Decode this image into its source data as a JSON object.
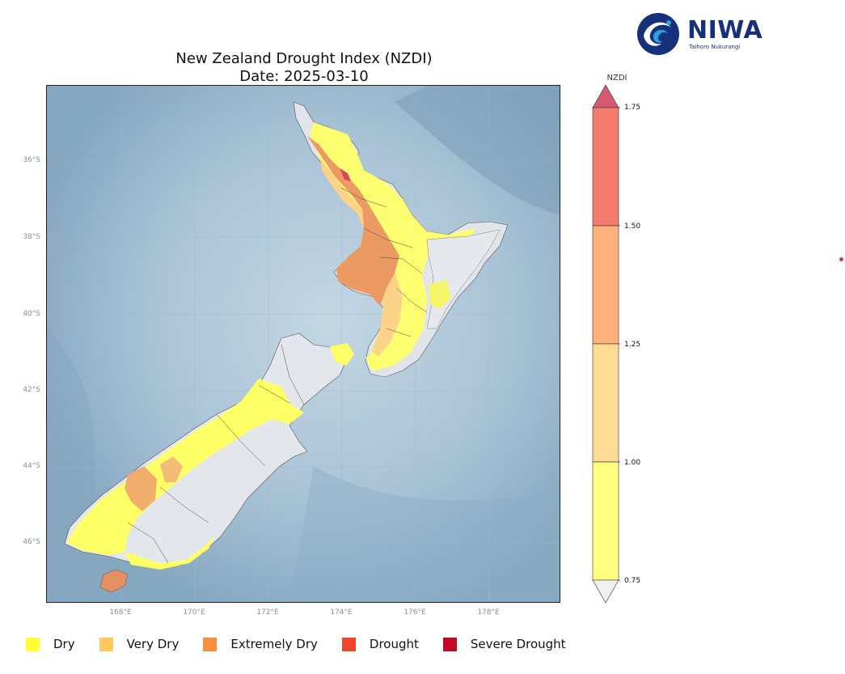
{
  "title": {
    "line1": "New Zealand Drought Index (NZDI)",
    "line2": "Date: 2025-03-10"
  },
  "logo": {
    "name": "NIWA",
    "subtitle": "Taihoro Nukurangi",
    "icon": "niwa-swirl-logo"
  },
  "map": {
    "lat_labels": [
      "36°S",
      "38°S",
      "40°S",
      "42°S",
      "44°S",
      "46°S"
    ],
    "lon_labels": [
      "168°E",
      "170°E",
      "172°E",
      "174°E",
      "176°E",
      "178°E"
    ],
    "ocean_color": "#aec5d6",
    "land_color": "#e2e6ea",
    "regions": [
      {
        "name": "North Island",
        "category": "Extremely Dry"
      },
      {
        "name": "South Island",
        "category": "Dry"
      }
    ]
  },
  "colorbar": {
    "title": "NZDI",
    "ticks": [
      "1.75",
      "1.50",
      "1.25",
      "1.00",
      "0.75"
    ],
    "bands": [
      {
        "from": 1.75,
        "to": 2.0,
        "color": "#d35a70",
        "shape": "extend-top"
      },
      {
        "from": 1.5,
        "to": 1.75,
        "color": "#f47c6e"
      },
      {
        "from": 1.25,
        "to": 1.5,
        "color": "#fdb07a"
      },
      {
        "from": 1.0,
        "to": 1.25,
        "color": "#fedb94"
      },
      {
        "from": 0.75,
        "to": 1.0,
        "color": "#ffff7f"
      },
      {
        "from": 0.5,
        "to": 0.75,
        "color": "#f0f0f0",
        "shape": "extend-bottom"
      }
    ]
  },
  "legend": [
    {
      "label": "Dry",
      "color": "#ffff33"
    },
    {
      "label": "Very Dry",
      "color": "#fdc85c"
    },
    {
      "label": "Extremely Dry",
      "color": "#f98e3d"
    },
    {
      "label": "Drought",
      "color": "#f0452b"
    },
    {
      "label": "Severe Drought",
      "color": "#c1092a"
    }
  ]
}
